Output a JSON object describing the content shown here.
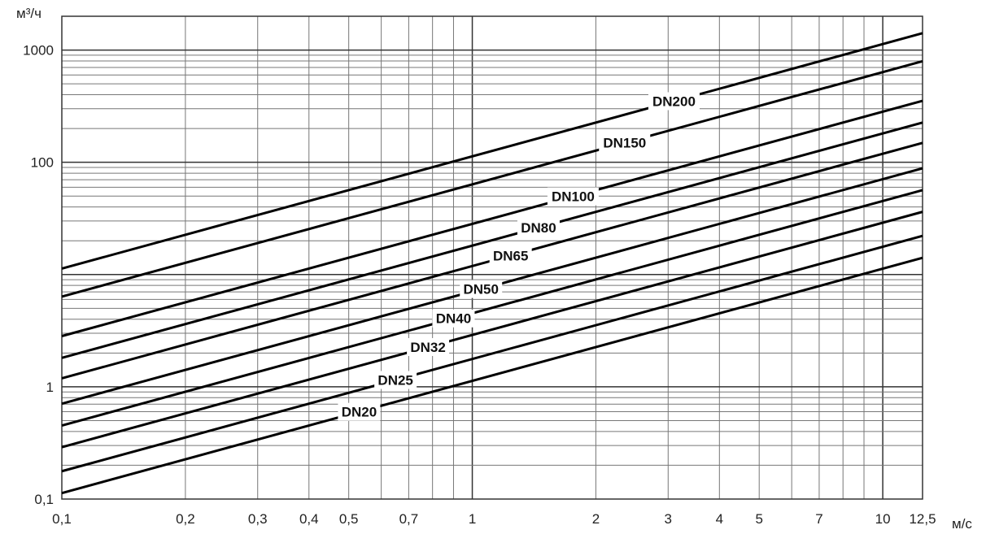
{
  "chart_data": {
    "type": "line",
    "title": "",
    "xlabel": "м/с",
    "ylabel": "м³/ч",
    "xscale": "log",
    "yscale": "log",
    "xlim": [
      0.1,
      12.5
    ],
    "ylim": [
      0.1,
      2000
    ],
    "grid": true,
    "x_ticks": [
      {
        "v": 0.1,
        "label": "0,1"
      },
      {
        "v": 0.2,
        "label": "0,2"
      },
      {
        "v": 0.3,
        "label": "0,3"
      },
      {
        "v": 0.4,
        "label": "0,4"
      },
      {
        "v": 0.5,
        "label": "0,5"
      },
      {
        "v": 0.7,
        "label": "0,7"
      },
      {
        "v": 1,
        "label": "1"
      },
      {
        "v": 2,
        "label": "2"
      },
      {
        "v": 3,
        "label": "3"
      },
      {
        "v": 4,
        "label": "4"
      },
      {
        "v": 5,
        "label": "5"
      },
      {
        "v": 7,
        "label": "7"
      },
      {
        "v": 10,
        "label": "10"
      },
      {
        "v": 12.5,
        "label": "12,5"
      }
    ],
    "y_ticks": [
      {
        "v": 0.1,
        "label": "0,1"
      },
      {
        "v": 1,
        "label": "1"
      },
      {
        "v": 100,
        "label": "100"
      },
      {
        "v": 1000,
        "label": "1000"
      }
    ],
    "series": [
      {
        "name": "DN20",
        "x": [
          0.1,
          12.5
        ],
        "y": [
          0.113,
          14.1
        ],
        "label_at": 0.53
      },
      {
        "name": "DN25",
        "x": [
          0.1,
          12.5
        ],
        "y": [
          0.177,
          22.1
        ],
        "label_at": 0.65
      },
      {
        "name": "DN32",
        "x": [
          0.1,
          12.5
        ],
        "y": [
          0.29,
          36.2
        ],
        "label_at": 0.78
      },
      {
        "name": "DN40",
        "x": [
          0.1,
          12.5
        ],
        "y": [
          0.452,
          56.5
        ],
        "label_at": 0.9
      },
      {
        "name": "DN50",
        "x": [
          0.1,
          12.5
        ],
        "y": [
          0.707,
          88.4
        ],
        "label_at": 1.05
      },
      {
        "name": "DN65",
        "x": [
          0.1,
          12.5
        ],
        "y": [
          1.19,
          149
        ],
        "label_at": 1.24
      },
      {
        "name": "DN80",
        "x": [
          0.1,
          12.5
        ],
        "y": [
          1.81,
          226
        ],
        "label_at": 1.45
      },
      {
        "name": "DN100",
        "x": [
          0.1,
          12.5
        ],
        "y": [
          2.83,
          353
        ],
        "label_at": 1.76
      },
      {
        "name": "DN150",
        "x": [
          0.1,
          12.5
        ],
        "y": [
          6.36,
          795
        ],
        "label_at": 2.35
      },
      {
        "name": "DN200",
        "x": [
          0.1,
          12.5
        ],
        "y": [
          11.3,
          1413
        ],
        "label_at": 3.1
      }
    ]
  }
}
